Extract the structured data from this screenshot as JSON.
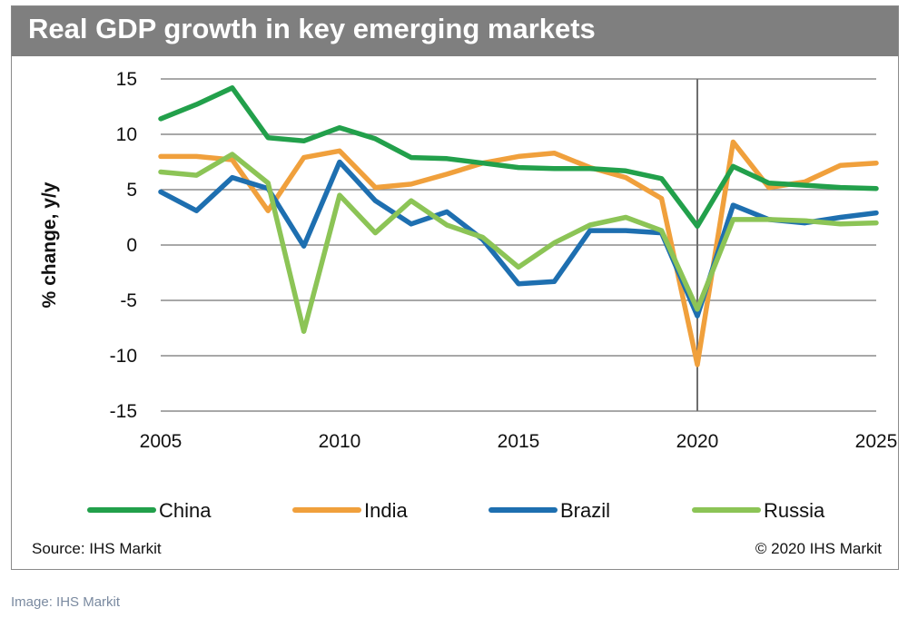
{
  "figure": {
    "title": "Real GDP growth in key emerging markets",
    "source": "Source: IHS Markit",
    "copyright": "© 2020 IHS Markit"
  },
  "caption": "Image: IHS Markit",
  "chart_data": {
    "type": "line",
    "title": "Real GDP growth in key emerging markets",
    "xlabel": "",
    "ylabel": "% change, y/y",
    "xlim": [
      2005,
      2025
    ],
    "ylim": [
      -15,
      15
    ],
    "yticks": [
      15,
      10,
      5,
      0,
      -5,
      -10,
      -15
    ],
    "xticks": [
      2005,
      2010,
      2015,
      2020,
      2025
    ],
    "grid": true,
    "vertical_marker": 2020,
    "legend_position": "bottom",
    "x": [
      2005,
      2006,
      2007,
      2008,
      2009,
      2010,
      2011,
      2012,
      2013,
      2014,
      2015,
      2016,
      2017,
      2018,
      2019,
      2020,
      2021,
      2022,
      2023,
      2024,
      2025
    ],
    "series": [
      {
        "name": "India",
        "color": "#f0a03c",
        "values": [
          8.0,
          8.0,
          7.7,
          3.1,
          7.9,
          8.5,
          5.2,
          5.5,
          6.4,
          7.4,
          8.0,
          8.3,
          7.0,
          6.1,
          4.2,
          -10.8,
          9.3,
          5.2,
          5.7,
          7.2,
          7.4
        ]
      },
      {
        "name": "Brazil",
        "color": "#1e6fb0",
        "values": [
          4.8,
          3.1,
          6.1,
          5.1,
          -0.1,
          7.5,
          4.0,
          1.9,
          3.0,
          0.5,
          -3.5,
          -3.3,
          1.3,
          1.3,
          1.1,
          -6.4,
          3.6,
          2.3,
          2.0,
          2.5,
          2.9
        ]
      },
      {
        "name": "Russia",
        "color": "#8cc456",
        "values": [
          6.6,
          6.3,
          8.2,
          5.6,
          -7.8,
          4.5,
          1.1,
          4.0,
          1.8,
          0.7,
          -2.0,
          0.2,
          1.8,
          2.5,
          1.3,
          -5.8,
          2.3,
          2.3,
          2.2,
          1.9,
          2.0
        ]
      },
      {
        "name": "China",
        "color": "#22a04b",
        "values": [
          11.4,
          12.7,
          14.2,
          9.7,
          9.4,
          10.6,
          9.6,
          7.9,
          7.8,
          7.4,
          7.0,
          6.9,
          6.9,
          6.7,
          6.0,
          1.7,
          7.1,
          5.6,
          5.4,
          5.2,
          5.1
        ]
      }
    ],
    "legend_order": [
      "China",
      "India",
      "Brazil",
      "Russia"
    ]
  }
}
